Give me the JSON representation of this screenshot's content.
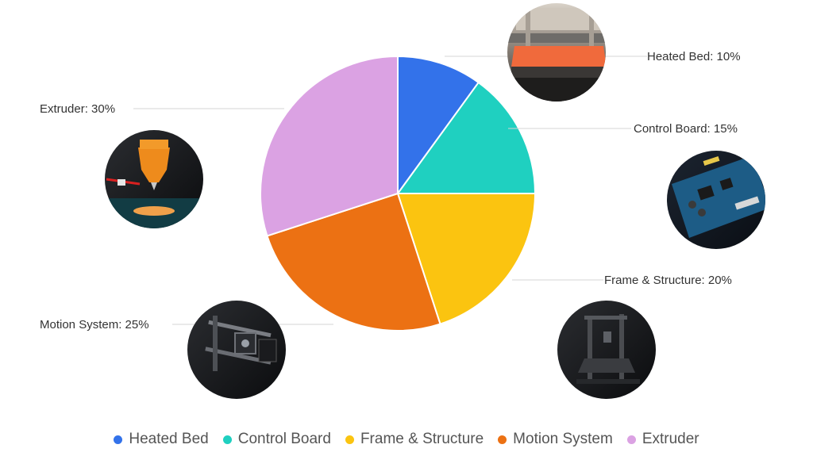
{
  "chart_data": {
    "type": "pie",
    "title": "",
    "categories": [
      "Heated Bed",
      "Control Board",
      "Frame & Structure",
      "Motion System",
      "Extruder"
    ],
    "values": [
      10,
      15,
      20,
      25,
      30
    ],
    "unit": "%",
    "colors": [
      "#3372ea",
      "#1fd0c0",
      "#fbc410",
      "#ec7113",
      "#dba2e3"
    ],
    "labels": [
      "Heated Bed: 10%",
      "Control Board: 15%",
      "Frame & Structure: 20%",
      "Motion System: 25%",
      "Extruder: 30%"
    ],
    "thumbnail_icons": [
      "heated-bed-photo-icon",
      "control-board-photo-icon",
      "frame-structure-photo-icon",
      "motion-system-photo-icon",
      "extruder-photo-icon"
    ],
    "legend_position": "bottom"
  }
}
